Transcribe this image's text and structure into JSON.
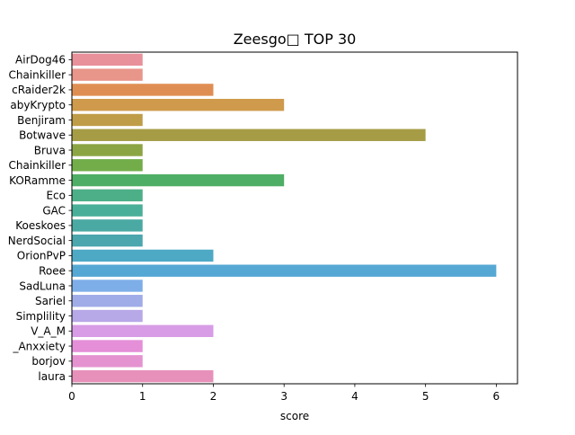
{
  "chart_data": {
    "type": "bar",
    "orientation": "horizontal",
    "title": "Zeesgo□ TOP 30",
    "xlabel": "score",
    "ylabel": "",
    "xlim": [
      0,
      6.3
    ],
    "xticks": [
      0,
      1,
      2,
      3,
      4,
      5,
      6
    ],
    "grid": false,
    "legend": "none",
    "categories": [
      "AirDog46",
      "Chainkiller",
      "cRaider2k",
      "abyKrypto",
      "Benjiram",
      "Botwave",
      "Bruva",
      "Chainkiller",
      "KORamme",
      "Eco",
      "GAC",
      "Koeskoes",
      "NerdSocial",
      "OrionPvP",
      "Roee",
      "SadLuna",
      "Sariel",
      "Simplility",
      "V_A_M",
      "_Anxxiety",
      "borjov",
      "laura"
    ],
    "values": [
      1,
      1,
      2,
      3,
      1,
      5,
      1,
      1,
      3,
      1,
      1,
      1,
      1,
      2,
      6,
      1,
      1,
      1,
      2,
      1,
      1,
      2
    ],
    "colors": [
      "#e8919a",
      "#e8958a",
      "#df8e53",
      "#cf9a4c",
      "#bf9c47",
      "#a59c45",
      "#8ca544",
      "#72ad4a",
      "#4fae65",
      "#4caf88",
      "#4aaf98",
      "#4aaaa3",
      "#4ba6ad",
      "#4ea9c5",
      "#56a8d4",
      "#7eaee8",
      "#a0ace8",
      "#b7a8e8",
      "#d79ce5",
      "#e48fd8",
      "#e493d0",
      "#e790ba"
    ]
  }
}
